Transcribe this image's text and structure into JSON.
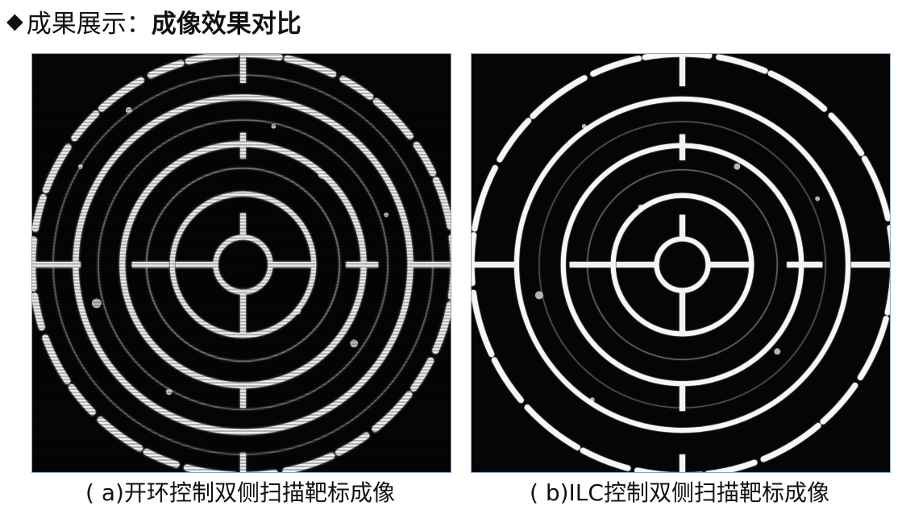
{
  "slide": {
    "bullet_icon": "diamond-bullet-icon",
    "title_prefix": "成果展示：",
    "title_bold": "成像效果对比"
  },
  "panels": [
    {
      "caption": "( a)开环控制双侧扫描靶标成像",
      "image": "target-rings-image"
    },
    {
      "caption": "( b)ILC控制双侧扫描靶标成像",
      "image": "target-rings-image"
    }
  ],
  "colors": {
    "frame_border": "#8aa6c8",
    "image_background": "#050505",
    "ring_highlight": "#f4f4f4"
  }
}
